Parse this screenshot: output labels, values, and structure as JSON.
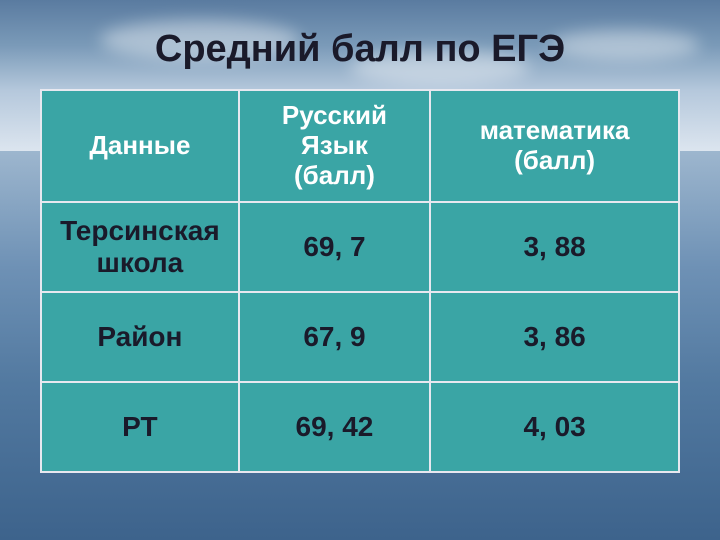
{
  "slide": {
    "title": "Средний балл по ЕГЭ"
  },
  "table": {
    "columns": [
      "Данные",
      "Русский\nЯзык\n(балл)",
      "математика\n(балл)"
    ],
    "rows": [
      [
        "Терсинская школа",
        "69, 7",
        "3, 88"
      ],
      [
        "Район",
        "67, 9",
        "3, 86"
      ],
      [
        "РТ",
        "69, 42",
        "4, 03"
      ]
    ],
    "header_bg_color": "#3aa5a5",
    "header_text_color": "#ffffff",
    "cell_bg_color": "#3aa5a5",
    "cell_text_color": "#1a1a2a",
    "border_color": "#e8e8f0",
    "title_fontsize": 38,
    "header_fontsize": 26,
    "cell_fontsize": 28,
    "column_widths_pct": [
      31,
      30,
      39
    ]
  },
  "background": {
    "type": "photo-sky-water",
    "sky_colors": [
      "#5a7ba0",
      "#7a9ab8",
      "#b5c8dc",
      "#dce5ef"
    ],
    "water_colors": [
      "#9db6ce",
      "#6e91b5",
      "#5279a0",
      "#3d638c"
    ]
  }
}
